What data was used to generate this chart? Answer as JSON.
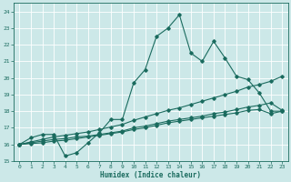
{
  "title": "",
  "xlabel": "Humidex (Indice chaleur)",
  "bg_color": "#cce8e8",
  "grid_color": "#aad4d4",
  "line_color": "#1a6b5e",
  "xlim": [
    -0.5,
    23.5
  ],
  "ylim": [
    15,
    24.5
  ],
  "yticks": [
    15,
    16,
    17,
    18,
    19,
    20,
    21,
    22,
    23,
    24
  ],
  "xticks": [
    0,
    1,
    2,
    3,
    4,
    5,
    6,
    7,
    8,
    9,
    10,
    11,
    12,
    13,
    14,
    15,
    16,
    17,
    18,
    19,
    20,
    21,
    22,
    23
  ],
  "lines": [
    {
      "x": [
        0,
        1,
        2,
        3,
        4,
        5,
        6,
        7,
        8,
        9,
        10,
        11,
        12,
        13,
        14,
        15,
        16,
        17,
        18,
        19,
        20,
        21,
        22,
        23
      ],
      "y": [
        16.0,
        16.4,
        16.6,
        16.6,
        15.3,
        15.5,
        16.1,
        16.7,
        17.5,
        17.5,
        19.7,
        20.5,
        22.5,
        23.0,
        23.8,
        21.5,
        21.0,
        22.2,
        21.2,
        20.1,
        19.9,
        19.1,
        18.0,
        18.0
      ]
    },
    {
      "x": [
        0,
        1,
        2,
        3,
        4,
        5,
        6,
        7,
        8,
        9,
        10,
        11,
        12,
        13,
        14,
        15,
        16,
        17,
        18,
        19,
        20,
        21,
        22,
        23
      ],
      "y": [
        16.0,
        16.15,
        16.3,
        16.45,
        16.55,
        16.65,
        16.75,
        16.9,
        17.05,
        17.2,
        17.45,
        17.65,
        17.85,
        18.05,
        18.2,
        18.4,
        18.6,
        18.8,
        19.0,
        19.2,
        19.45,
        19.6,
        19.8,
        20.1
      ]
    },
    {
      "x": [
        0,
        1,
        2,
        3,
        4,
        5,
        6,
        7,
        8,
        9,
        10,
        11,
        12,
        13,
        14,
        15,
        16,
        17,
        18,
        19,
        20,
        21,
        22,
        23
      ],
      "y": [
        16.0,
        16.1,
        16.2,
        16.3,
        16.35,
        16.45,
        16.5,
        16.6,
        16.7,
        16.8,
        17.0,
        17.1,
        17.25,
        17.4,
        17.5,
        17.6,
        17.7,
        17.85,
        17.95,
        18.1,
        18.25,
        18.35,
        18.5,
        18.05
      ]
    },
    {
      "x": [
        0,
        1,
        2,
        3,
        4,
        5,
        6,
        7,
        8,
        9,
        10,
        11,
        12,
        13,
        14,
        15,
        16,
        17,
        18,
        19,
        20,
        21,
        22,
        23
      ],
      "y": [
        16.0,
        16.05,
        16.1,
        16.2,
        16.25,
        16.35,
        16.45,
        16.55,
        16.65,
        16.75,
        16.9,
        17.0,
        17.15,
        17.3,
        17.4,
        17.5,
        17.6,
        17.7,
        17.8,
        17.9,
        18.05,
        18.1,
        17.85,
        18.0
      ]
    }
  ]
}
